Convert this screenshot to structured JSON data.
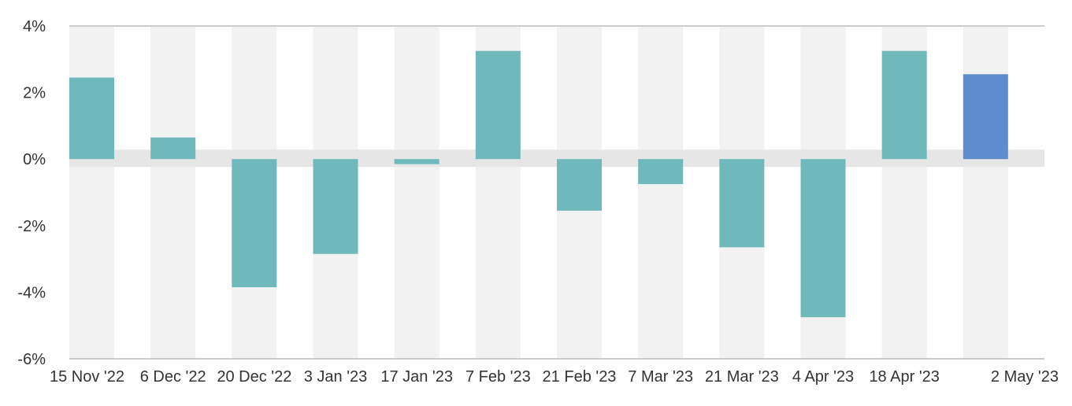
{
  "chart_data": {
    "type": "bar",
    "categories": [
      "15 Nov '22",
      "6 Dec '22",
      "20 Dec '22",
      "3 Jan '23",
      "17 Jan '23",
      "7 Feb '23",
      "21 Feb '23",
      "7 Mar '23",
      "21 Mar '23",
      "4 Apr '23",
      "18 Apr '23",
      "2 May '23"
    ],
    "values": [
      2.45,
      0.65,
      -3.85,
      -2.85,
      -0.15,
      3.25,
      -1.55,
      -0.75,
      -2.65,
      -4.75,
      3.25,
      2.55
    ],
    "ylim": [
      -6,
      4
    ],
    "yticks": [
      4,
      2,
      0,
      -2,
      -4,
      -6
    ],
    "ytick_labels": [
      "4%",
      "2%",
      "0%",
      "-2%",
      "-4%",
      "-6%"
    ],
    "title": "",
    "xlabel": "",
    "ylabel": "",
    "grid": true,
    "legend": "none",
    "colors": {
      "bar": "#6fb9bb",
      "highlight_bar": "#5f8ccc",
      "band": "#f2f2f2",
      "zero_band": "#e6e6e6",
      "axis": "#cccccc"
    },
    "highlight_index": 11
  }
}
